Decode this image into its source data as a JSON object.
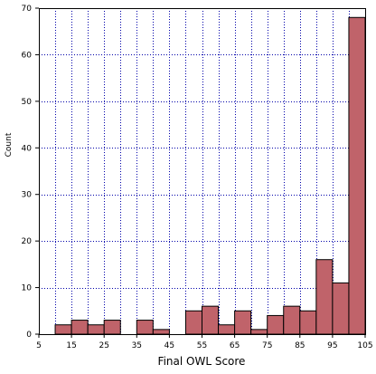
{
  "chart_data": {
    "type": "bar",
    "subtype": "histogram",
    "title": "",
    "xlabel": "Final OWL Score",
    "ylabel": "Count",
    "xlim": [
      5,
      105
    ],
    "ylim": [
      0,
      70
    ],
    "xticks": [
      5,
      15,
      25,
      35,
      45,
      55,
      65,
      75,
      85,
      95,
      105
    ],
    "yticks": [
      0,
      10,
      20,
      30,
      40,
      50,
      60,
      70
    ],
    "x_gridlines": [
      10,
      15,
      20,
      25,
      30,
      35,
      40,
      45,
      50,
      55,
      60,
      65,
      70,
      75,
      80,
      85,
      90,
      95,
      100
    ],
    "grid": true,
    "bin_width": 5,
    "bins": [
      {
        "x_start": 10,
        "x_end": 15,
        "count": 2
      },
      {
        "x_start": 15,
        "x_end": 20,
        "count": 3
      },
      {
        "x_start": 20,
        "x_end": 25,
        "count": 2
      },
      {
        "x_start": 25,
        "x_end": 30,
        "count": 3
      },
      {
        "x_start": 30,
        "x_end": 35,
        "count": 0
      },
      {
        "x_start": 35,
        "x_end": 40,
        "count": 3
      },
      {
        "x_start": 40,
        "x_end": 45,
        "count": 1
      },
      {
        "x_start": 45,
        "x_end": 50,
        "count": 0
      },
      {
        "x_start": 50,
        "x_end": 55,
        "count": 5
      },
      {
        "x_start": 55,
        "x_end": 60,
        "count": 6
      },
      {
        "x_start": 60,
        "x_end": 65,
        "count": 2
      },
      {
        "x_start": 65,
        "x_end": 70,
        "count": 5
      },
      {
        "x_start": 70,
        "x_end": 75,
        "count": 1
      },
      {
        "x_start": 75,
        "x_end": 80,
        "count": 4
      },
      {
        "x_start": 80,
        "x_end": 85,
        "count": 6
      },
      {
        "x_start": 85,
        "x_end": 90,
        "count": 5
      },
      {
        "x_start": 90,
        "x_end": 95,
        "count": 16
      },
      {
        "x_start": 95,
        "x_end": 100,
        "count": 11
      },
      {
        "x_start": 100,
        "x_end": 105,
        "count": 68
      }
    ],
    "colors": {
      "bar_fill": "#c0636a",
      "bar_stroke": "#000000",
      "grid": "#0000aa",
      "frame": "#000000"
    }
  }
}
